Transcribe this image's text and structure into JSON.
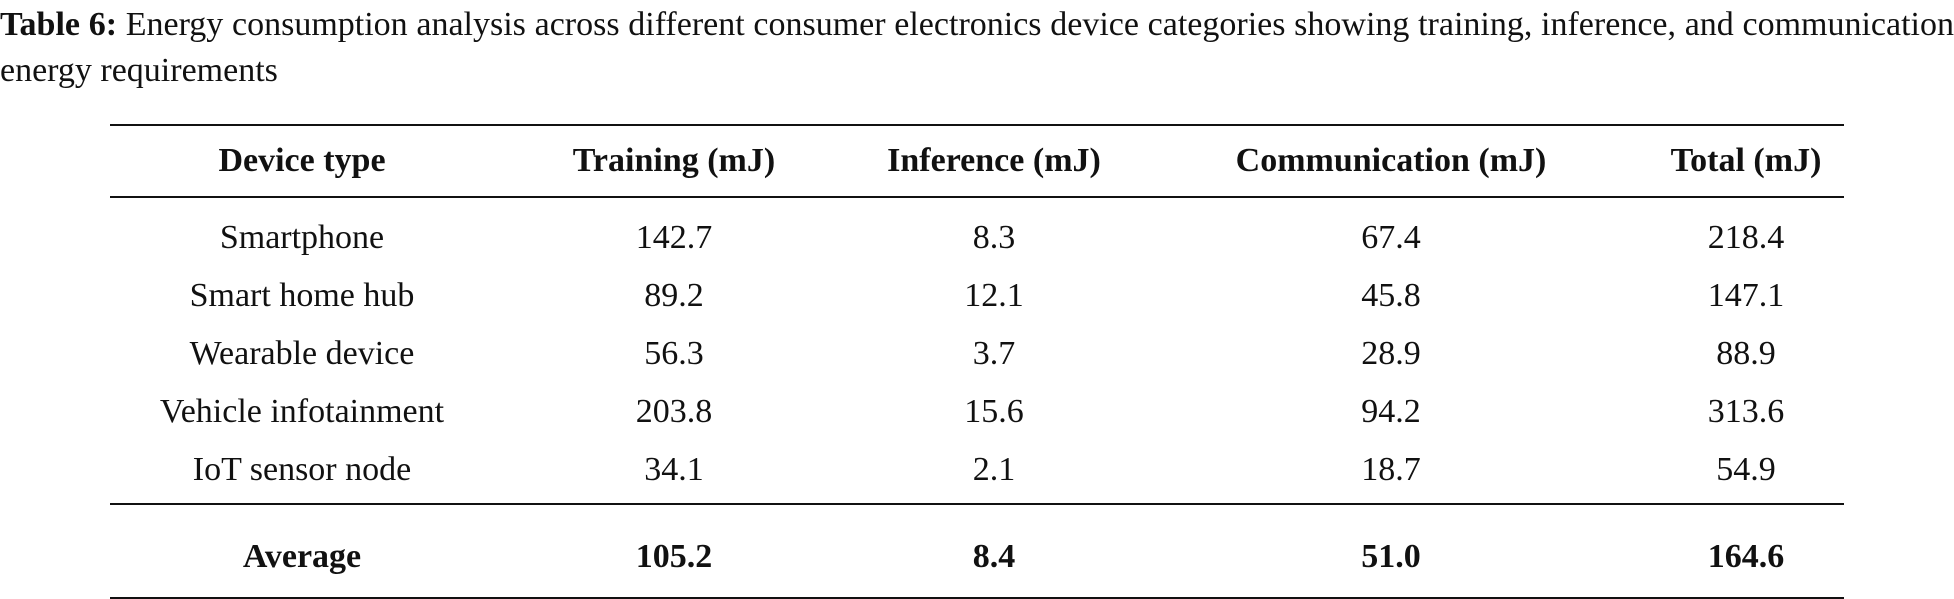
{
  "caption": {
    "label": "Table 6:",
    "text": "Energy consumption analysis across different consumer electronics device categories showing training, inference, and communication energy requirements"
  },
  "table": {
    "header": [
      "Device type",
      "Training (mJ)",
      "Inference (mJ)",
      "Communication (mJ)",
      "Total (mJ)"
    ],
    "rows": [
      [
        "Smartphone",
        "142.7",
        "8.3",
        "67.4",
        "218.4"
      ],
      [
        "Smart home hub",
        "89.2",
        "12.1",
        "45.8",
        "147.1"
      ],
      [
        "Wearable device",
        "56.3",
        "3.7",
        "28.9",
        "88.9"
      ],
      [
        "Vehicle infotainment",
        "203.8",
        "15.6",
        "94.2",
        "313.6"
      ],
      [
        "IoT sensor node",
        "34.1",
        "2.1",
        "18.7",
        "54.9"
      ]
    ],
    "footer": [
      "Average",
      "105.2",
      "8.4",
      "51.0",
      "164.6"
    ]
  }
}
